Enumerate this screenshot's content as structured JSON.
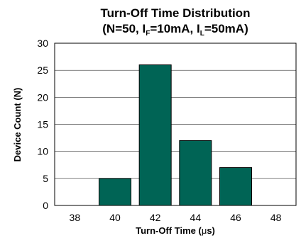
{
  "chart_data": {
    "type": "bar",
    "title": "Turn-Off Time Distribution",
    "subtitle": {
      "prefix": "(N=50, I",
      "sub1": "F",
      "mid": "=10mA, I",
      "sub2": "L",
      "suffix": "=50mA)"
    },
    "xlabel": {
      "prefix": "Turn-Off Time (",
      "mu": "μ",
      "suffix": "s)"
    },
    "ylabel": "Device Count (N)",
    "categories": [
      "38",
      "40",
      "42",
      "44",
      "46",
      "48"
    ],
    "values": [
      0,
      5,
      26,
      12,
      7,
      0
    ],
    "ylim": [
      0,
      30
    ],
    "yticks": [
      0,
      5,
      10,
      15,
      20,
      25,
      30
    ],
    "grid": true,
    "bar_color": "#006455"
  }
}
